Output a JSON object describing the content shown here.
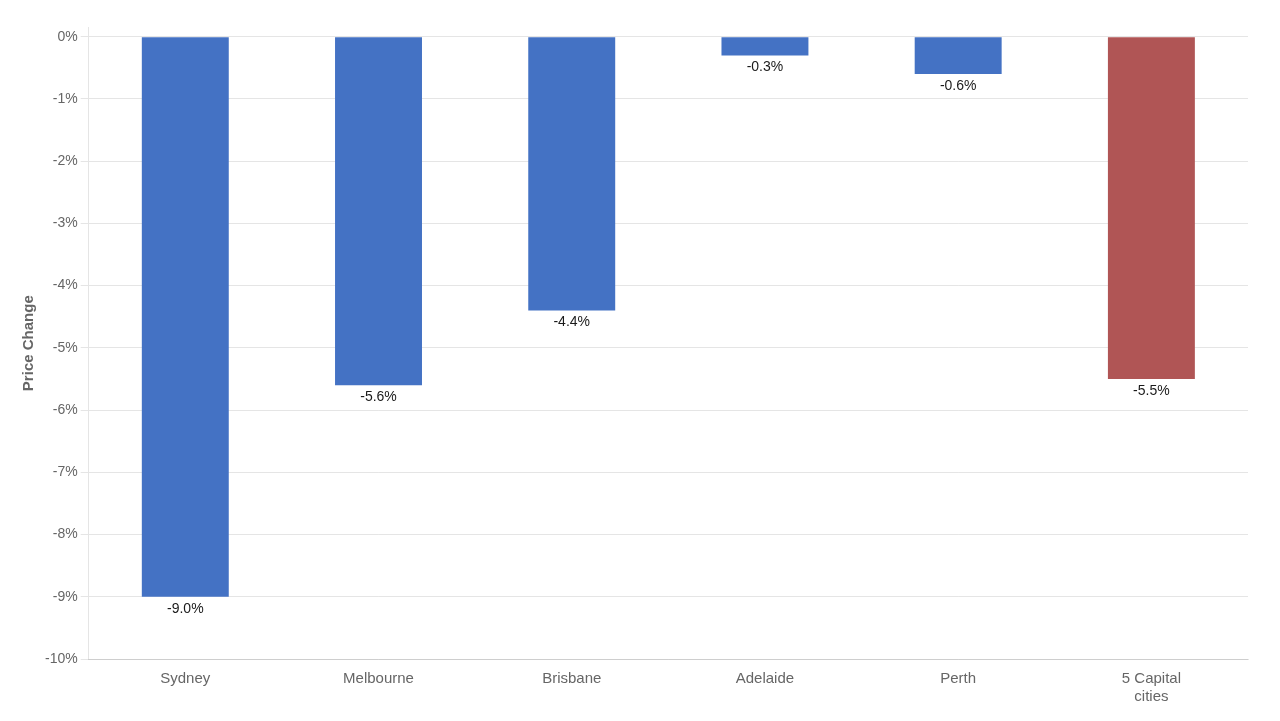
{
  "chart_data": {
    "type": "bar",
    "categories": [
      "Sydney",
      "Melbourne",
      "Brisbane",
      "Adelaide",
      "Perth",
      "5 Capital\ncities"
    ],
    "values": [
      -9.0,
      -5.6,
      -4.4,
      -0.3,
      -0.6,
      -5.5
    ],
    "value_labels": [
      "-9.0%",
      "-5.6%",
      "-4.4%",
      "-0.3%",
      "-0.6%",
      "-5.5%"
    ],
    "data_labels": true,
    "colors": [
      "#4472C4",
      "#4472C4",
      "#4472C4",
      "#4472C4",
      "#4472C4",
      "#B05555"
    ],
    "ylabel": "Price Change",
    "ylim": [
      -10,
      0.15
    ],
    "yticks": [
      {
        "value": 0,
        "label": "0%"
      },
      {
        "value": -1,
        "label": "-1%"
      },
      {
        "value": -2,
        "label": "-2%"
      },
      {
        "value": -3,
        "label": "-3%"
      },
      {
        "value": -4,
        "label": "-4%"
      },
      {
        "value": -5,
        "label": "-5%"
      },
      {
        "value": -6,
        "label": "-6%"
      },
      {
        "value": -7,
        "label": "-7%"
      },
      {
        "value": -8,
        "label": "-8%"
      },
      {
        "value": -9,
        "label": "-9%"
      },
      {
        "value": -10,
        "label": "-10%"
      }
    ],
    "grid": true
  }
}
